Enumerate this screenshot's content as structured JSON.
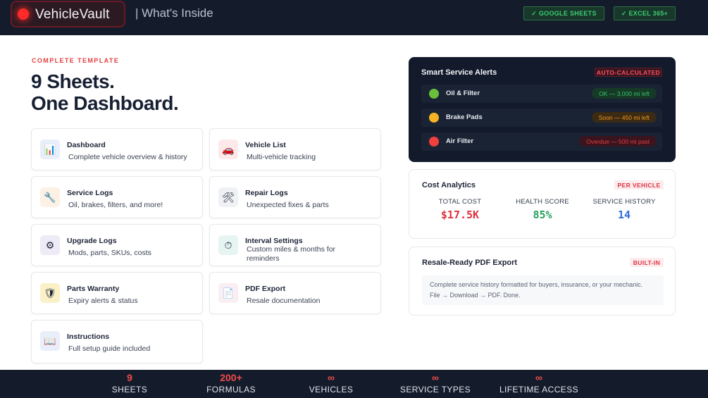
{
  "header": {
    "brand": "VehicleVault",
    "subtitle": "| What's Inside",
    "badges": [
      "✓ GOOGLE SHEETS",
      "✓ EXCEL 365+"
    ]
  },
  "hero": {
    "kicker": "COMPLETE TEMPLATE",
    "title_line1": "9 Sheets.",
    "title_line2": "One Dashboard."
  },
  "sheets": [
    {
      "icon": "bar-chart-icon",
      "glyph": "📊",
      "title": "Dashboard",
      "desc": "Complete vehicle overview & history"
    },
    {
      "icon": "car-icon",
      "glyph": "🚗",
      "title": "Vehicle List",
      "desc": "Multi-vehicle tracking"
    },
    {
      "icon": "wrench-icon",
      "glyph": "🔧",
      "title": "Service Logs",
      "desc": "Oil, brakes, filters, and more!"
    },
    {
      "icon": "tools-icon",
      "glyph": "🛠",
      "title": "Repair Logs",
      "desc": "Unexpected fixes & parts"
    },
    {
      "icon": "gear-icon",
      "glyph": "⚙",
      "title": "Upgrade Logs",
      "desc": "Mods, parts, SKUs, costs"
    },
    {
      "icon": "stopwatch-icon",
      "glyph": "⏱",
      "title": "Interval Settings",
      "desc": "Custom miles & months for reminders"
    },
    {
      "icon": "shield-icon",
      "glyph": "🛡",
      "title": "Parts Warranty",
      "desc": "Expiry alerts & status"
    },
    {
      "icon": "document-icon",
      "glyph": "📄",
      "title": "PDF Export",
      "desc": "Resale documentation"
    },
    {
      "icon": "book-icon",
      "glyph": "📖",
      "title": "Instructions",
      "desc": "Full setup guide included"
    }
  ],
  "alerts": {
    "title": "Smart Service Alerts",
    "badge": "AUTO-CALCULATED",
    "items": [
      {
        "label": "Oil & Filter",
        "status": "OK — 3,000 mi left",
        "color": "#6abf3a"
      },
      {
        "label": "Brake Pads",
        "status": "Soon — 450 mi left",
        "color": "#f5b324"
      },
      {
        "label": "Air Filter",
        "status": "Overdue — 500 mi past",
        "color": "#ef3f3f"
      }
    ]
  },
  "cost": {
    "title": "Cost Analytics",
    "badge": "PER VEHICLE",
    "stats": [
      {
        "label": "TOTAL COST",
        "value": "$17.5K",
        "color": "#e1303c"
      },
      {
        "label": "HEALTH SCORE",
        "value": "85%",
        "color": "#27a160"
      },
      {
        "label": "SERVICE HISTORY",
        "value": "14",
        "color": "#2d6cdf"
      }
    ]
  },
  "pdf": {
    "title": "Resale-Ready PDF Export",
    "badge": "BUILT-IN",
    "line1": "Complete service history formatted for buyers, insurance, or your mechanic.",
    "line2": "File → Download → PDF. Done."
  },
  "footer_stats": [
    {
      "number": "9",
      "label": "SHEETS"
    },
    {
      "number": "200+",
      "label": "FORMULAS"
    },
    {
      "number": "∞",
      "label": "VEHICLES"
    },
    {
      "number": "∞",
      "label": "SERVICE TYPES"
    },
    {
      "number": "∞",
      "label": "LIFETIME ACCESS"
    }
  ],
  "colors": {
    "accent": "#e53e3e",
    "dark_bg": "#141c2c",
    "ok": "#34c36b",
    "warning": "#f29a1e"
  }
}
